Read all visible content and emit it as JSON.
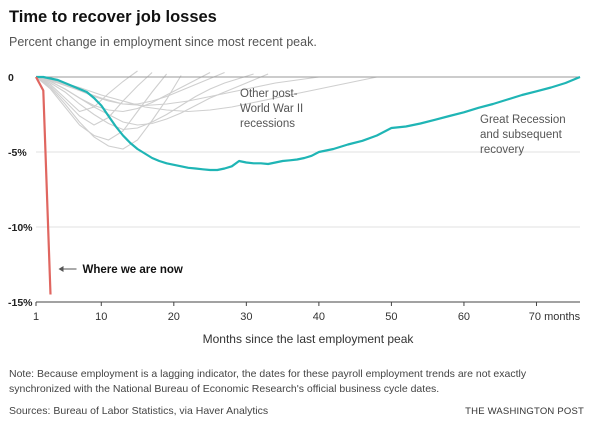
{
  "title": "Time to recover job losses",
  "subtitle": "Percent change in employment since most recent peak.",
  "note": "Note: Because employment is a lagging indicator, the dates for these payroll employment trends are not exactly synchronized with the National Bureau of Economic Research's official business cycle dates.",
  "sources": "Sources: Bureau of Labor Statistics, via Haver Analytics",
  "credit": "THE WASHINGTON POST",
  "chart_data": {
    "type": "line",
    "xlabel": "Months since the last employment peak",
    "ylabel": "",
    "xlim": [
      1,
      76
    ],
    "ylim": [
      -15,
      0
    ],
    "grid": true,
    "x_ticks": [
      {
        "value": 1,
        "label": "1"
      },
      {
        "value": 10,
        "label": "10"
      },
      {
        "value": 20,
        "label": "20"
      },
      {
        "value": 30,
        "label": "30"
      },
      {
        "value": 40,
        "label": "40"
      },
      {
        "value": 50,
        "label": "50"
      },
      {
        "value": 60,
        "label": "60"
      },
      {
        "value": 70,
        "label": "70 months"
      }
    ],
    "y_ticks": [
      {
        "value": 0,
        "label": "0"
      },
      {
        "value": -5,
        "label": "-5%"
      },
      {
        "value": -10,
        "label": "-10%"
      },
      {
        "value": -15,
        "label": "-15%"
      }
    ],
    "annotations": [
      {
        "text": "Other post-World War II recessions",
        "lines": [
          "Other post-",
          "World War II",
          "recessions"
        ]
      },
      {
        "text": "Great Recession and subsequent recovery",
        "lines": [
          "Great Recession",
          "and subsequent",
          "recovery"
        ]
      },
      {
        "text": "Where we are now",
        "lines": [
          "Where we are now"
        ]
      }
    ],
    "colors": {
      "current": "#e06660",
      "great_recession": "#1fb5b5",
      "other": "#cfcfcf",
      "grid": "#e1e1e1",
      "axis": "#444444"
    },
    "series": [
      {
        "key": "current",
        "x": [
          1,
          2,
          3
        ],
        "y": [
          0,
          -0.9,
          -14.5
        ]
      },
      {
        "key": "great_recession",
        "x": [
          1,
          2,
          3,
          4,
          5,
          6,
          7,
          8,
          9,
          10,
          11,
          12,
          13,
          14,
          15,
          16,
          17,
          18,
          19,
          20,
          21,
          22,
          23,
          24,
          25,
          26,
          27,
          28,
          29,
          30,
          31,
          32,
          33,
          34,
          35,
          36,
          37,
          38,
          39,
          40,
          42,
          44,
          46,
          48,
          50,
          52,
          54,
          56,
          58,
          60,
          62,
          64,
          66,
          68,
          70,
          72,
          74,
          76
        ],
        "y": [
          0,
          0,
          -0.1,
          -0.2,
          -0.4,
          -0.6,
          -0.8,
          -1.0,
          -1.4,
          -1.9,
          -2.6,
          -3.3,
          -3.9,
          -4.4,
          -4.8,
          -5.1,
          -5.4,
          -5.6,
          -5.75,
          -5.85,
          -5.95,
          -6.05,
          -6.1,
          -6.15,
          -6.2,
          -6.2,
          -6.1,
          -5.95,
          -5.6,
          -5.7,
          -5.75,
          -5.75,
          -5.8,
          -5.7,
          -5.6,
          -5.55,
          -5.5,
          -5.4,
          -5.25,
          -5.0,
          -4.8,
          -4.5,
          -4.25,
          -3.9,
          -3.4,
          -3.3,
          -3.1,
          -2.85,
          -2.6,
          -2.35,
          -2.05,
          -1.8,
          -1.5,
          -1.2,
          -0.95,
          -0.7,
          -0.4,
          0
        ]
      },
      {
        "key": "other",
        "x": [
          1,
          3,
          5,
          7,
          9,
          11,
          13,
          15,
          17
        ],
        "y": [
          0,
          -0.6,
          -1.6,
          -2.6,
          -3.2,
          -2.7,
          -1.6,
          -0.6,
          0.3
        ]
      },
      {
        "key": "other",
        "x": [
          1,
          3,
          5,
          7,
          9,
          11,
          13,
          15
        ],
        "y": [
          0,
          -0.5,
          -1.4,
          -2.3,
          -2.0,
          -1.1,
          -0.3,
          0.4
        ]
      },
      {
        "key": "other",
        "x": [
          1,
          3,
          5,
          7,
          9,
          11,
          13,
          15,
          17,
          19
        ],
        "y": [
          0,
          -0.8,
          -2.0,
          -3.2,
          -3.9,
          -4.2,
          -3.6,
          -2.3,
          -1.0,
          0.2
        ]
      },
      {
        "key": "other",
        "x": [
          1,
          3,
          5,
          7,
          9,
          11,
          13,
          15,
          17,
          19,
          21
        ],
        "y": [
          0,
          -0.7,
          -1.8,
          -3.0,
          -4.0,
          -4.6,
          -4.8,
          -4.2,
          -2.9,
          -1.5,
          0.1
        ]
      },
      {
        "key": "other",
        "x": [
          1,
          3,
          5,
          7,
          9,
          11,
          13,
          15,
          17,
          19,
          21,
          23,
          25
        ],
        "y": [
          0,
          -0.3,
          -0.8,
          -1.4,
          -1.9,
          -2.2,
          -2.3,
          -2.1,
          -1.7,
          -1.2,
          -0.7,
          -0.2,
          0.3
        ]
      },
      {
        "key": "other",
        "x": [
          1,
          3,
          5,
          7,
          9,
          11,
          13,
          15,
          17,
          19,
          21,
          23,
          25,
          27
        ],
        "y": [
          0,
          -0.2,
          -0.5,
          -0.9,
          -1.3,
          -1.6,
          -1.8,
          -1.8,
          -1.6,
          -1.3,
          -0.9,
          -0.5,
          -0.1,
          0.3
        ]
      },
      {
        "key": "other",
        "x": [
          1,
          4,
          7,
          10,
          13,
          16,
          19,
          22,
          25,
          28,
          31,
          34,
          37,
          40,
          43,
          46,
          48
        ],
        "y": [
          0,
          -0.3,
          -0.7,
          -1.2,
          -1.6,
          -2.0,
          -2.2,
          -2.3,
          -2.2,
          -2.0,
          -1.7,
          -1.4,
          -1.1,
          -0.8,
          -0.5,
          -0.2,
          0
        ]
      },
      {
        "key": "other",
        "x": [
          1,
          4,
          7,
          10,
          13,
          16,
          19,
          22,
          25,
          28,
          31,
          34,
          37,
          40
        ],
        "y": [
          0,
          -0.4,
          -0.9,
          -1.4,
          -1.8,
          -1.9,
          -1.8,
          -1.6,
          -1.3,
          -1.0,
          -0.7,
          -0.4,
          -0.2,
          0
        ]
      },
      {
        "key": "other",
        "x": [
          1,
          3,
          5,
          7,
          9,
          11,
          13,
          15,
          17,
          19,
          21,
          23,
          25,
          27,
          29,
          31,
          33
        ],
        "y": [
          0,
          -0.3,
          -0.8,
          -1.4,
          -2.0,
          -2.5,
          -3.0,
          -3.2,
          -3.1,
          -2.8,
          -2.4,
          -1.9,
          -1.4,
          -1.0,
          -0.6,
          -0.2,
          0.2
        ]
      },
      {
        "key": "other",
        "x": [
          1,
          3,
          5,
          7,
          9,
          11,
          13,
          15,
          17,
          19,
          21,
          23,
          25,
          27,
          29,
          31
        ],
        "y": [
          0,
          -0.4,
          -1.0,
          -1.8,
          -2.5,
          -3.1,
          -3.5,
          -3.4,
          -3.0,
          -2.5,
          -1.9,
          -1.3,
          -0.8,
          -0.4,
          -0.1,
          0.2
        ]
      }
    ]
  }
}
